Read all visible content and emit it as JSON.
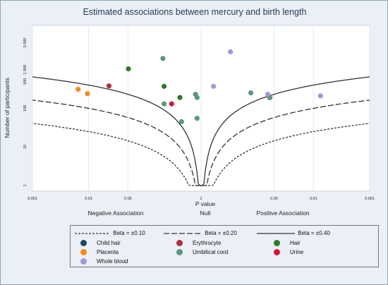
{
  "chart_data": {
    "type": "scatter",
    "title": "Estimated associations between mercury and birth length",
    "xlabel": "P value",
    "ylabel": "Number of participants",
    "x_ticks": [
      "0.001",
      "0.01",
      "0.05",
      "1",
      "0.05",
      "0.01",
      "0.001"
    ],
    "y_ticks": [
      "5 000",
      "1 000",
      "500",
      "100",
      "10",
      "1"
    ],
    "region_labels": [
      "Negative Association",
      "Null",
      "Positive Association"
    ],
    "lines": [
      {
        "name": "Beta = ±0.10",
        "color": "#333333",
        "dash": "3,2"
      },
      {
        "name": "Beta = ±0.20",
        "color": "#333333",
        "dash": "8,3"
      },
      {
        "name": "Beta = ±0.40",
        "color": "#333333",
        "dash": ""
      }
    ],
    "series": [
      {
        "name": "Child hair",
        "color": "#1a4a6b",
        "points": [
          {
            "x": 0.06,
            "y": 190
          }
        ]
      },
      {
        "name": "Erythrocyte",
        "color": "#b03040",
        "points": [
          {
            "x": -0.023,
            "y": 380
          }
        ]
      },
      {
        "name": "Hair",
        "color": "#2e7a2a",
        "points": [
          {
            "x": -0.051,
            "y": 1050
          },
          {
            "x": -0.22,
            "y": 370
          },
          {
            "x": -0.42,
            "y": 190
          }
        ]
      },
      {
        "name": "Placenta",
        "color": "#f08c1c",
        "points": [
          {
            "x": -0.0065,
            "y": 310
          },
          {
            "x": -0.0095,
            "y": 240
          },
          {
            "x": 0.059,
            "y": 190
          }
        ]
      },
      {
        "name": "Umbilical cord",
        "color": "#5a9682",
        "points": [
          {
            "x": -0.21,
            "y": 1950
          },
          {
            "x": -0.22,
            "y": 130
          },
          {
            "x": -0.45,
            "y": 45
          },
          {
            "x": -0.8,
            "y": 230
          },
          {
            "x": -0.85,
            "y": 190
          },
          {
            "x": -0.85,
            "y": 55
          },
          {
            "x": 0.06,
            "y": 190
          },
          {
            "x": 0.13,
            "y": 250
          }
        ]
      },
      {
        "name": "Urine",
        "color": "#d8143c",
        "points": [
          {
            "x": -0.3,
            "y": 130
          }
        ]
      },
      {
        "name": "Whole blood",
        "color": "#a396d9",
        "points": [
          {
            "x": 0.3,
            "y": 2900
          },
          {
            "x": 0.6,
            "y": 370
          },
          {
            "x": 0.065,
            "y": 230
          },
          {
            "x": 0.0075,
            "y": 210
          }
        ]
      }
    ]
  }
}
